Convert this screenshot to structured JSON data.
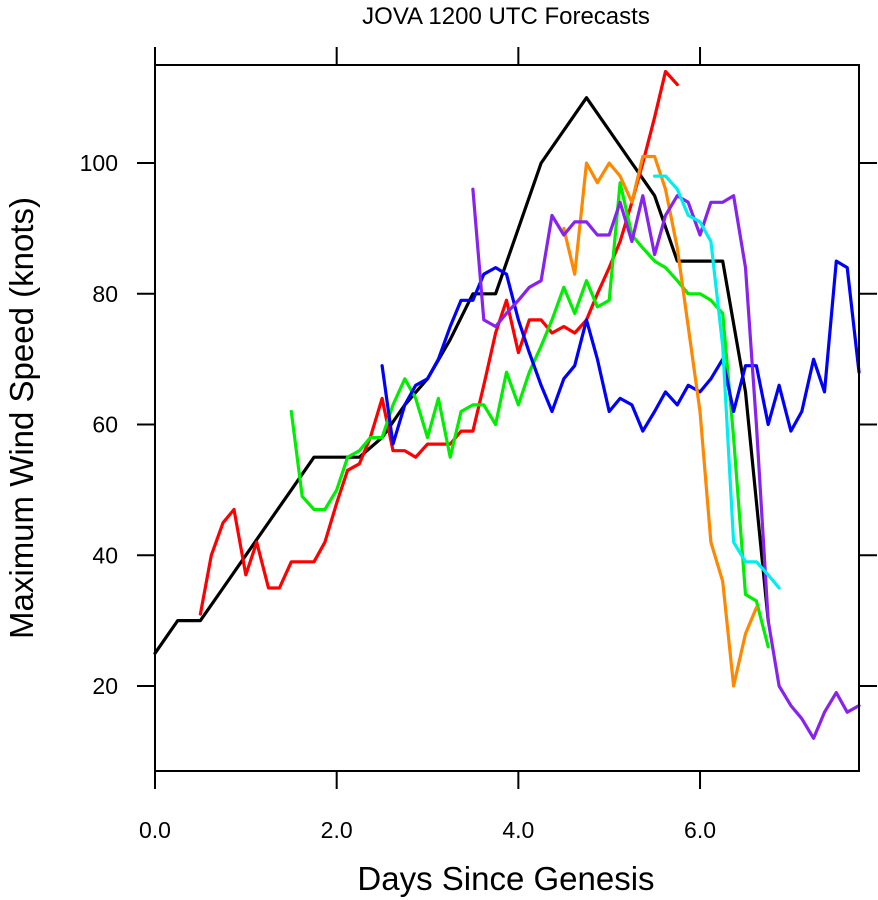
{
  "chart_data": {
    "type": "line",
    "title": "JOVA 1200 UTC Forecasts",
    "xlabel": "Days Since Genesis",
    "ylabel": "Maximum Wind Speed (knots)",
    "xlim": [
      0,
      7.75
    ],
    "ylim": [
      7,
      115
    ],
    "xticks": [
      0,
      2,
      4,
      6
    ],
    "xtick_labels": [
      "0.0",
      "2.0",
      "4.0",
      "6.0"
    ],
    "yticks": [
      20,
      40,
      60,
      80,
      100
    ],
    "ytick_labels": [
      "20",
      "40",
      "60",
      "80",
      "100"
    ],
    "grid": false,
    "legend": "none",
    "series": [
      {
        "color": "#000000",
        "points": [
          [
            0,
            25
          ],
          [
            0.25,
            30
          ],
          [
            0.5,
            30
          ],
          [
            0.75,
            35
          ],
          [
            1,
            40
          ],
          [
            1.25,
            45
          ],
          [
            1.5,
            50
          ],
          [
            1.75,
            55
          ],
          [
            2,
            55
          ],
          [
            2.25,
            55
          ],
          [
            2.5,
            58
          ],
          [
            2.75,
            63
          ],
          [
            3,
            67
          ],
          [
            3.25,
            73
          ],
          [
            3.5,
            80
          ],
          [
            3.75,
            80
          ],
          [
            4,
            90
          ],
          [
            4.25,
            100
          ],
          [
            4.5,
            105
          ],
          [
            4.75,
            110
          ],
          [
            5,
            105
          ],
          [
            5.25,
            100
          ],
          [
            5.5,
            95
          ],
          [
            5.75,
            85
          ],
          [
            6,
            85
          ],
          [
            6.25,
            85
          ],
          [
            6.5,
            65
          ],
          [
            6.75,
            30
          ]
        ]
      },
      {
        "color": "#ff0000",
        "points": [
          [
            0.5,
            31
          ],
          [
            0.62,
            40
          ],
          [
            0.75,
            45
          ],
          [
            0.87,
            47
          ],
          [
            1,
            37
          ],
          [
            1.12,
            42
          ],
          [
            1.25,
            35
          ],
          [
            1.37,
            35
          ],
          [
            1.5,
            39
          ],
          [
            1.75,
            39
          ],
          [
            1.87,
            42
          ],
          [
            2,
            48
          ],
          [
            2.12,
            53
          ],
          [
            2.25,
            54
          ],
          [
            2.37,
            58
          ],
          [
            2.5,
            64
          ],
          [
            2.62,
            56
          ],
          [
            2.75,
            56
          ],
          [
            2.87,
            55
          ],
          [
            3,
            57
          ],
          [
            3.25,
            57
          ],
          [
            3.37,
            59
          ],
          [
            3.5,
            59
          ],
          [
            3.62,
            66
          ],
          [
            3.75,
            74
          ],
          [
            3.87,
            79
          ],
          [
            4,
            71
          ],
          [
            4.12,
            76
          ],
          [
            4.25,
            76
          ],
          [
            4.37,
            74
          ],
          [
            4.5,
            75
          ],
          [
            4.62,
            74
          ],
          [
            4.75,
            76
          ],
          [
            4.87,
            80
          ],
          [
            5,
            84
          ],
          [
            5.12,
            88
          ],
          [
            5.25,
            94
          ],
          [
            5.37,
            100
          ],
          [
            5.5,
            107
          ],
          [
            5.62,
            114
          ],
          [
            5.75,
            112
          ]
        ]
      },
      {
        "color": "#00ee00",
        "points": [
          [
            1.5,
            62
          ],
          [
            1.62,
            49
          ],
          [
            1.75,
            47
          ],
          [
            1.87,
            47
          ],
          [
            2,
            50
          ],
          [
            2.12,
            55
          ],
          [
            2.25,
            56
          ],
          [
            2.37,
            58
          ],
          [
            2.5,
            58
          ],
          [
            2.62,
            63
          ],
          [
            2.75,
            67
          ],
          [
            2.87,
            64
          ],
          [
            3,
            58
          ],
          [
            3.12,
            64
          ],
          [
            3.25,
            55
          ],
          [
            3.37,
            62
          ],
          [
            3.5,
            63
          ],
          [
            3.62,
            63
          ],
          [
            3.75,
            60
          ],
          [
            3.87,
            68
          ],
          [
            4,
            63
          ],
          [
            4.12,
            68
          ],
          [
            4.25,
            72
          ],
          [
            4.37,
            76
          ],
          [
            4.5,
            81
          ],
          [
            4.62,
            77
          ],
          [
            4.75,
            82
          ],
          [
            4.87,
            78
          ],
          [
            5,
            79
          ],
          [
            5.12,
            97
          ],
          [
            5.25,
            89
          ],
          [
            5.37,
            87
          ],
          [
            5.5,
            85
          ],
          [
            5.62,
            84
          ],
          [
            5.75,
            82
          ],
          [
            5.87,
            80
          ],
          [
            6,
            80
          ],
          [
            6.12,
            79
          ],
          [
            6.25,
            77
          ],
          [
            6.37,
            58
          ],
          [
            6.5,
            34
          ],
          [
            6.62,
            33
          ],
          [
            6.75,
            26
          ]
        ]
      },
      {
        "color": "#0000ff",
        "points": [
          [
            2.5,
            69
          ],
          [
            2.62,
            57
          ],
          [
            2.75,
            63
          ],
          [
            2.87,
            66
          ],
          [
            3,
            67
          ],
          [
            3.12,
            70
          ],
          [
            3.25,
            75
          ],
          [
            3.37,
            79
          ],
          [
            3.5,
            79
          ],
          [
            3.62,
            83
          ],
          [
            3.75,
            84
          ],
          [
            3.87,
            83
          ],
          [
            4,
            76
          ],
          [
            4.12,
            71
          ],
          [
            4.25,
            66
          ],
          [
            4.37,
            62
          ],
          [
            4.5,
            67
          ],
          [
            4.62,
            69
          ],
          [
            4.75,
            76
          ],
          [
            4.87,
            70
          ],
          [
            5,
            62
          ],
          [
            5.12,
            64
          ],
          [
            5.25,
            63
          ],
          [
            5.37,
            59
          ],
          [
            5.5,
            62
          ],
          [
            5.62,
            65
          ],
          [
            5.75,
            63
          ],
          [
            5.87,
            66
          ],
          [
            6,
            65
          ],
          [
            6.12,
            67
          ],
          [
            6.25,
            70
          ],
          [
            6.37,
            62
          ],
          [
            6.5,
            69
          ],
          [
            6.62,
            69
          ],
          [
            6.75,
            60
          ],
          [
            6.87,
            66
          ],
          [
            7,
            59
          ],
          [
            7.12,
            62
          ],
          [
            7.25,
            70
          ],
          [
            7.37,
            65
          ],
          [
            7.5,
            85
          ],
          [
            7.62,
            84
          ],
          [
            7.75,
            68
          ]
        ]
      },
      {
        "color": "#ff8800",
        "points": [
          [
            4.5,
            90
          ],
          [
            4.62,
            83
          ],
          [
            4.75,
            100
          ],
          [
            4.87,
            97
          ],
          [
            5,
            100
          ],
          [
            5.12,
            98
          ],
          [
            5.25,
            94
          ],
          [
            5.37,
            101
          ],
          [
            5.5,
            101
          ],
          [
            5.62,
            96
          ],
          [
            5.75,
            87
          ],
          [
            5.87,
            75
          ],
          [
            6,
            62
          ],
          [
            6.12,
            42
          ],
          [
            6.25,
            36
          ],
          [
            6.37,
            20
          ],
          [
            6.5,
            28
          ],
          [
            6.62,
            32
          ]
        ]
      },
      {
        "color": "#8822ee",
        "points": [
          [
            3.5,
            96
          ],
          [
            3.62,
            76
          ],
          [
            3.75,
            75
          ],
          [
            3.87,
            77
          ],
          [
            4,
            79
          ],
          [
            4.12,
            81
          ],
          [
            4.25,
            82
          ],
          [
            4.37,
            92
          ],
          [
            4.5,
            89
          ],
          [
            4.62,
            91
          ],
          [
            4.75,
            91
          ],
          [
            4.87,
            89
          ],
          [
            5,
            89
          ],
          [
            5.12,
            94
          ],
          [
            5.25,
            88
          ],
          [
            5.37,
            95
          ],
          [
            5.5,
            86
          ],
          [
            5.62,
            92
          ],
          [
            5.75,
            95
          ],
          [
            5.87,
            94
          ],
          [
            6,
            89
          ],
          [
            6.12,
            94
          ],
          [
            6.25,
            94
          ],
          [
            6.37,
            95
          ],
          [
            6.5,
            84
          ],
          [
            6.62,
            60
          ],
          [
            6.75,
            30
          ],
          [
            6.87,
            20
          ],
          [
            7,
            17
          ],
          [
            7.12,
            15
          ],
          [
            7.25,
            12
          ],
          [
            7.37,
            16
          ],
          [
            7.5,
            19
          ],
          [
            7.62,
            16
          ],
          [
            7.75,
            17
          ]
        ]
      },
      {
        "color": "#00eeee",
        "points": [
          [
            5.5,
            98
          ],
          [
            5.62,
            98
          ],
          [
            5.75,
            96
          ],
          [
            5.87,
            92
          ],
          [
            6,
            91
          ],
          [
            6.12,
            88
          ],
          [
            6.25,
            72
          ],
          [
            6.37,
            42
          ],
          [
            6.5,
            39
          ],
          [
            6.62,
            39
          ],
          [
            6.75,
            37
          ],
          [
            6.87,
            35
          ]
        ]
      }
    ]
  }
}
